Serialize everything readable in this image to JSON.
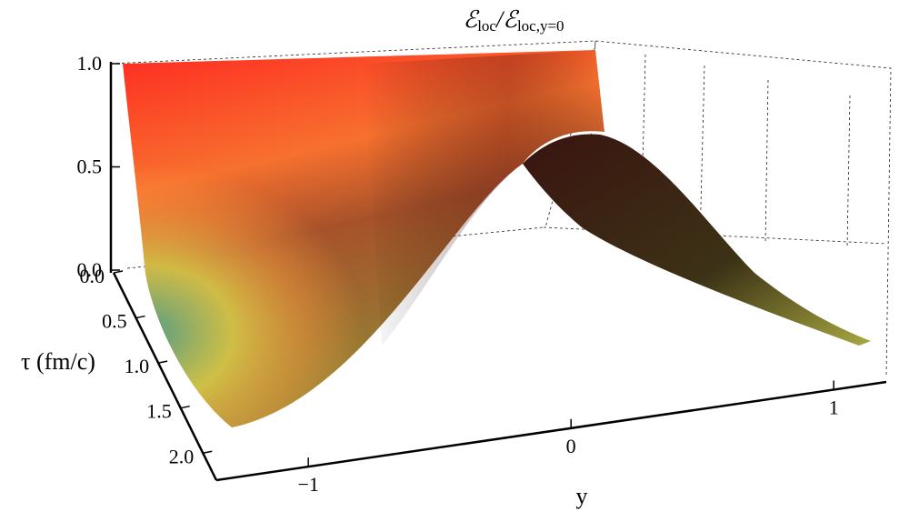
{
  "chart_data": {
    "type": "surface3d",
    "title_parts": [
      "ℰ",
      "loc",
      "/ℰ",
      "loc,y=0"
    ],
    "xlabel": "y",
    "taulabel": "τ (fm/c)",
    "zlim": [
      0,
      1
    ],
    "zticks": [
      {
        "value": 0,
        "label": "0.0"
      },
      0.5,
      {
        "value": 1,
        "label": "1.0"
      }
    ],
    "taulim": [
      0,
      2.3
    ],
    "tauticks": [
      {
        "value": 0,
        "label": "0.0"
      },
      0.5,
      {
        "value": 1,
        "label": "1.0"
      },
      1.5,
      {
        "value": 2,
        "label": "2.0"
      }
    ],
    "xlim": [
      -1.35,
      1.2
    ],
    "xticks": [
      {
        "value": -1,
        "label": "−1"
      },
      0,
      1
    ]
  }
}
